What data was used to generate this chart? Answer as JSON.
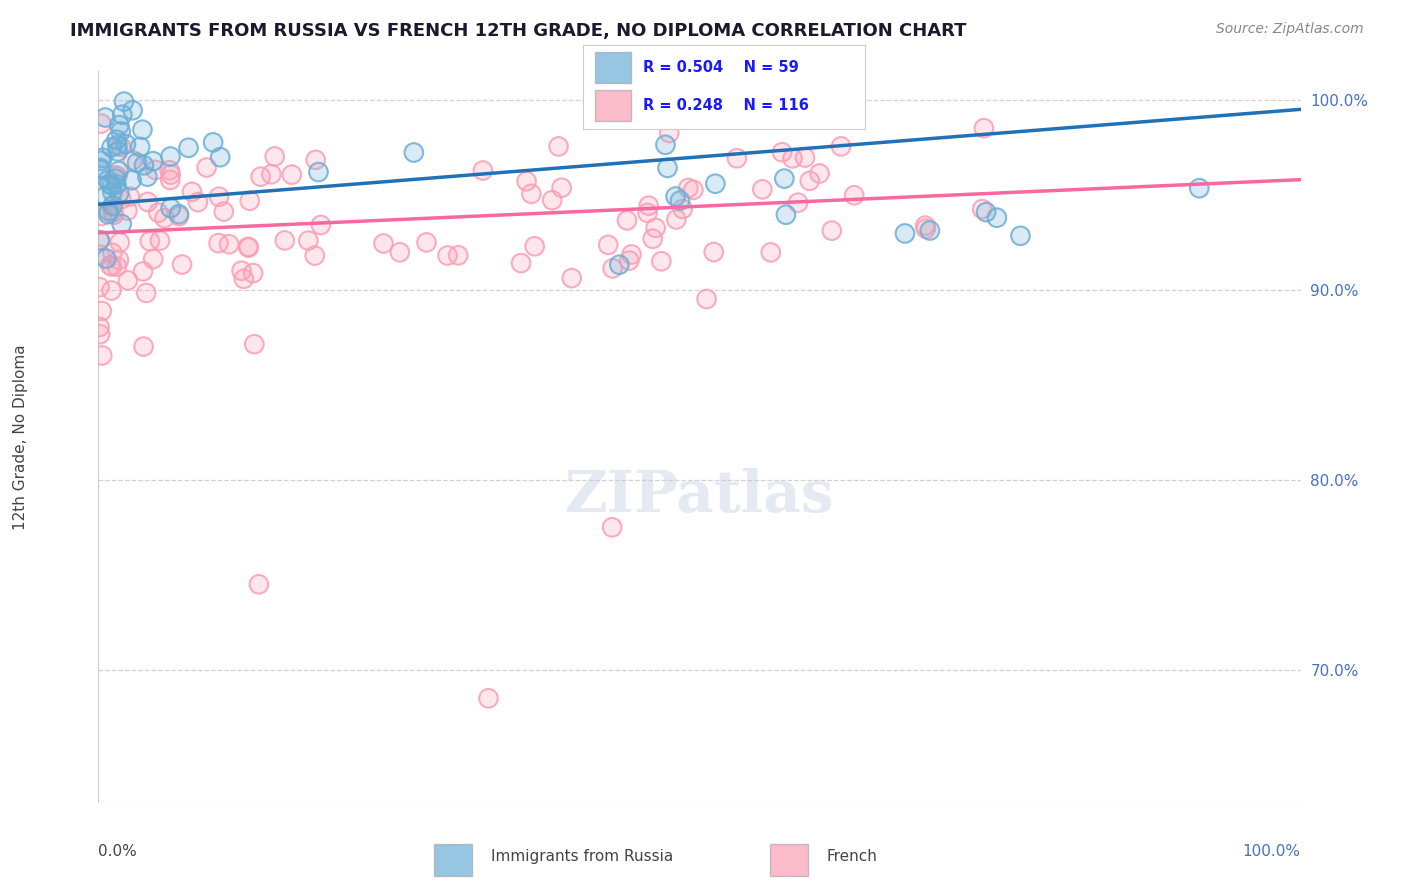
{
  "title": "IMMIGRANTS FROM RUSSIA VS FRENCH 12TH GRADE, NO DIPLOMA CORRELATION CHART",
  "source": "Source: ZipAtlas.com",
  "ylabel": "12th Grade, No Diploma",
  "right_yticks": [
    70.0,
    80.0,
    90.0,
    100.0
  ],
  "russia_R": 0.504,
  "russia_N": 59,
  "french_R": 0.248,
  "french_N": 116,
  "russia_color": "#6baed6",
  "french_color": "#fa9fb5",
  "russia_line_color": "#2171b5",
  "french_line_color": "#f768a1",
  "background_color": "#ffffff",
  "grid_color": "#cccccc",
  "title_color": "#1a1a2e",
  "source_color": "#888888",
  "right_label_color": "#4472c4",
  "xmin": 0.0,
  "xmax": 100.0,
  "ymin": 63.0,
  "ymax": 101.5,
  "russia_trend_start": 94.5,
  "russia_trend_end": 99.5,
  "french_trend_start": 93.0,
  "french_trend_end": 95.8
}
